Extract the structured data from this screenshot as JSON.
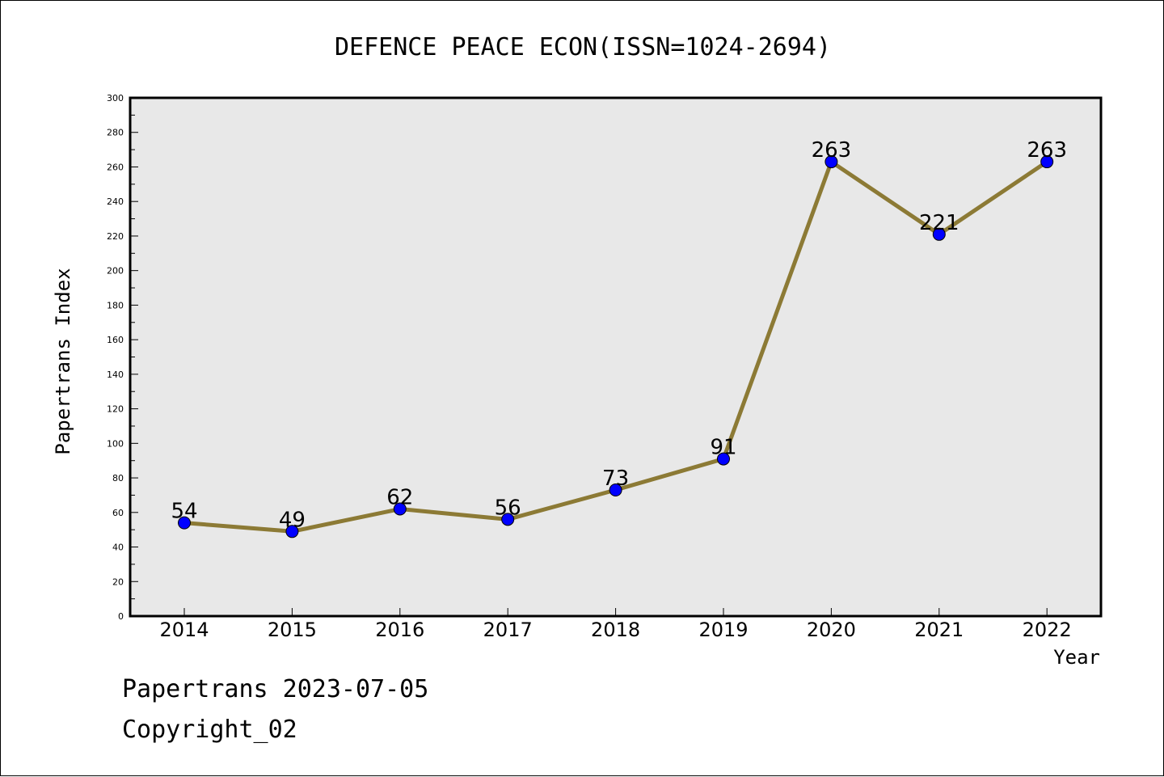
{
  "chart_data": {
    "type": "line",
    "title": "DEFENCE PEACE ECON(ISSN=1024-2694)",
    "xlabel": "Year",
    "ylabel": "Papertrans Index",
    "categories": [
      "2014",
      "2015",
      "2016",
      "2017",
      "2018",
      "2019",
      "2020",
      "2021",
      "2022"
    ],
    "series": [
      {
        "values": [
          54,
          49,
          62,
          56,
          73,
          91,
          263,
          221,
          263
        ]
      }
    ],
    "ylim": [
      0,
      300
    ],
    "yticks": [
      0,
      20,
      40,
      60,
      80,
      100,
      120,
      140,
      160,
      180,
      200,
      220,
      240,
      260,
      280,
      300
    ],
    "grid": false,
    "line_color": "#8c7a35",
    "marker_color": "#0000ff",
    "plot_background": "#e8e8e8"
  },
  "footer": {
    "line1": "Papertrans 2023-07-05",
    "line2": "Copyright_02"
  }
}
